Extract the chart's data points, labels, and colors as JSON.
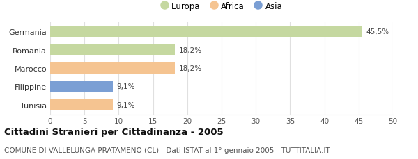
{
  "categories": [
    "Tunisia",
    "Filippine",
    "Marocco",
    "Romania",
    "Germania"
  ],
  "values": [
    9.1,
    9.1,
    18.2,
    18.2,
    45.5
  ],
  "labels": [
    "9,1%",
    "9,1%",
    "18,2%",
    "18,2%",
    "45,5%"
  ],
  "colors": [
    "#f5c491",
    "#7b9fd4",
    "#f5c491",
    "#c5d8a0",
    "#c5d8a0"
  ],
  "legend": [
    {
      "label": "Europa",
      "color": "#c5d8a0"
    },
    {
      "label": "Africa",
      "color": "#f5c491"
    },
    {
      "label": "Asia",
      "color": "#7b9fd4"
    }
  ],
  "xlim": [
    0,
    50
  ],
  "xticks": [
    0,
    5,
    10,
    15,
    20,
    25,
    30,
    35,
    40,
    45,
    50
  ],
  "title": "Cittadini Stranieri per Cittadinanza - 2005",
  "subtitle": "COMUNE DI VALLELUNGA PRATAMENO (CL) - Dati ISTAT al 1° gennaio 2005 - TUTTITALIA.IT",
  "title_fontsize": 9.5,
  "subtitle_fontsize": 7.5,
  "bar_height": 0.6,
  "background_color": "#ffffff",
  "grid_color": "#e0e0e0"
}
